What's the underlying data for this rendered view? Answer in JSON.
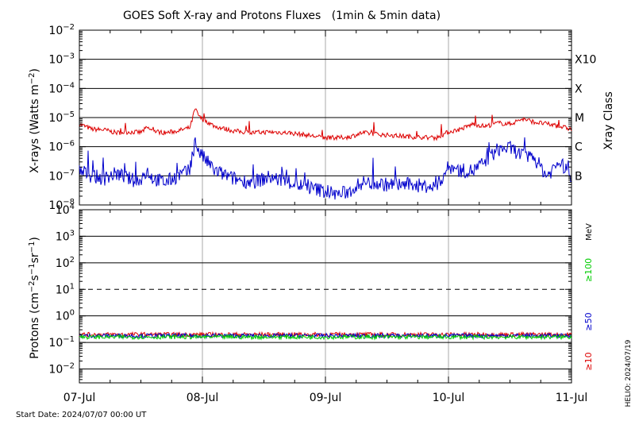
{
  "chart_data": [
    {
      "type": "line",
      "panel": "xray",
      "title": "GOES Soft X-ray and Protons Fluxes   (1min & 5min data)",
      "xlabel": "",
      "ylabel": "X-rays (Watts m-2)",
      "ylabel_parts": {
        "main": "X-rays (Watts m",
        "sup": "−2",
        "end": ")"
      },
      "y_scale": "log",
      "ylim": [
        1e-08,
        0.01
      ],
      "y_ticks": [
        {
          "value": 0.01,
          "exp": "−2"
        },
        {
          "value": 0.001,
          "exp": "−3"
        },
        {
          "value": 0.0001,
          "exp": "−4"
        },
        {
          "value": 1e-05,
          "exp": "−5"
        },
        {
          "value": 1e-06,
          "exp": "−6"
        },
        {
          "value": 1e-07,
          "exp": "−7"
        },
        {
          "value": 1e-08,
          "exp": "−8"
        }
      ],
      "xlim": [
        "2024-07-07 00:00",
        "2024-07-11 00:00"
      ],
      "x_ticks": [
        "07-Jul",
        "08-Jul",
        "09-Jul",
        "10-Jul",
        "11-Jul"
      ],
      "right_axis_title": "Xray Class",
      "right_axis_labels": [
        {
          "value": 0.001,
          "label": "X10"
        },
        {
          "value": 0.0001,
          "label": "X"
        },
        {
          "value": 1e-05,
          "label": "M"
        },
        {
          "value": 1e-06,
          "label": "C"
        },
        {
          "value": 1e-07,
          "label": "B"
        }
      ],
      "series": [
        {
          "color": "#dd0000",
          "x_days": [
            0.0,
            0.1,
            0.2,
            0.3,
            0.4,
            0.5,
            0.55,
            0.6,
            0.7,
            0.8,
            0.9,
            0.94,
            0.98,
            1.1,
            1.25,
            1.4,
            1.55,
            1.7,
            1.85,
            2.0,
            2.1,
            2.2,
            2.3,
            2.5,
            2.7,
            2.9,
            3.0,
            3.1,
            3.2,
            3.3,
            3.4,
            3.5,
            3.6,
            3.7,
            3.8,
            3.9,
            4.0
          ],
          "values": [
            6e-06,
            4e-06,
            3.8e-06,
            3e-06,
            3.2e-06,
            3.1e-06,
            4.5e-06,
            3.4e-06,
            3e-06,
            3.5e-06,
            4.5e-06,
            2e-05,
            1e-05,
            5e-06,
            3.5e-06,
            3e-06,
            3.2e-06,
            3e-06,
            2.5e-06,
            2e-06,
            2e-06,
            2.2e-06,
            3e-06,
            2.5e-06,
            2.2e-06,
            2e-06,
            3.2e-06,
            4e-06,
            6e-06,
            5e-06,
            6.5e-06,
            6e-06,
            9e-06,
            7e-06,
            6e-06,
            5e-06,
            4e-06
          ]
        },
        {
          "color": "#0000cc",
          "x_days": [
            0.0,
            0.1,
            0.2,
            0.3,
            0.4,
            0.5,
            0.55,
            0.6,
            0.7,
            0.8,
            0.9,
            0.94,
            0.98,
            1.1,
            1.25,
            1.4,
            1.55,
            1.7,
            1.85,
            2.0,
            2.1,
            2.2,
            2.3,
            2.5,
            2.7,
            2.9,
            3.0,
            3.1,
            3.2,
            3.3,
            3.4,
            3.5,
            3.6,
            3.7,
            3.8,
            3.9,
            4.0
          ],
          "values": [
            1.5e-07,
            1e-07,
            8e-08,
            1.2e-07,
            8e-08,
            6e-08,
            1.5e-07,
            8e-08,
            6e-08,
            1e-07,
            1.5e-07,
            1.5e-06,
            6e-07,
            1.5e-07,
            8e-08,
            6e-08,
            9e-08,
            6e-08,
            4e-08,
            3e-08,
            2.2e-08,
            3e-08,
            6e-08,
            5e-08,
            5e-08,
            4e-08,
            2e-07,
            1.5e-07,
            1.5e-07,
            3e-07,
            8e-07,
            9e-07,
            5e-07,
            4e-07,
            1e-07,
            3e-07,
            1e-07
          ]
        }
      ]
    },
    {
      "type": "line",
      "panel": "protons",
      "xlabel": "",
      "ylabel": "Protons (cm-2s-1sr-1)",
      "ylabel_parts": {
        "p1": "Protons (cm",
        "s1": "−2",
        "p2": "s",
        "s2": "−1",
        "p3": "sr",
        "s3": "−1",
        "p4": ")"
      },
      "y_scale": "log",
      "ylim": [
        0.003,
        10000
      ],
      "y_ticks": [
        {
          "value": 10000,
          "base": "10",
          "exp": "4"
        },
        {
          "value": 1000,
          "base": "10",
          "exp": "3"
        },
        {
          "value": 100,
          "base": "10",
          "exp": "2"
        },
        {
          "value": 10,
          "base": "10",
          "exp": "1"
        },
        {
          "value": 1,
          "base": "10",
          "exp": "0"
        },
        {
          "value": 0.1,
          "base": "10",
          "exp": "−1"
        },
        {
          "value": 0.01,
          "base": "10",
          "exp": "−2"
        }
      ],
      "threshold_line": 10,
      "xlim": [
        "2024-07-07 00:00",
        "2024-07-11 00:00"
      ],
      "x_ticks": [
        "07-Jul",
        "08-Jul",
        "09-Jul",
        "10-Jul",
        "11-Jul"
      ],
      "unit_label": "MeV",
      "legend": [
        {
          "label": "≥100",
          "color": "#00cc00"
        },
        {
          "label": "≥50",
          "color": "#0000cc"
        },
        {
          "label": "≥10",
          "color": "#dd0000"
        }
      ],
      "series": [
        {
          "color": "#dd0000",
          "level": 0.2
        },
        {
          "color": "#0000cc",
          "level": 0.18
        },
        {
          "color": "#00cc00",
          "level": 0.16
        }
      ]
    }
  ],
  "footer": {
    "start_date": "Start Date: 2024/07/07 00:00 UT",
    "credit": "HELIO: 2024/07/19"
  }
}
